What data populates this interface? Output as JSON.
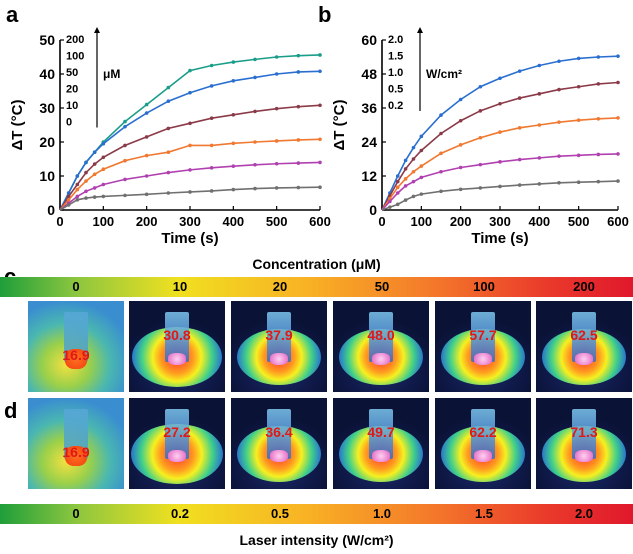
{
  "panels": {
    "a": "a",
    "b": "b",
    "c": "c",
    "d": "d"
  },
  "chart_data": [
    {
      "type": "line",
      "xlabel": "Time (s)",
      "ylabel": "ΔT (°C)",
      "xlim": [
        0,
        600
      ],
      "ylim": [
        0,
        50
      ],
      "xticks": [
        0,
        100,
        200,
        300,
        400,
        500,
        600
      ],
      "yticks": [
        0,
        10,
        20,
        30,
        40,
        50
      ],
      "annotation_unit": "μM",
      "legend_labels": [
        "200",
        "100",
        "50",
        "20",
        "10",
        "0"
      ],
      "x": [
        0,
        20,
        40,
        60,
        80,
        100,
        150,
        200,
        250,
        300,
        350,
        400,
        450,
        500,
        550,
        600
      ],
      "series": [
        {
          "name": "200",
          "color": "#1a9e8a",
          "values": [
            0,
            5,
            10,
            14,
            17,
            20,
            26,
            31,
            36,
            41,
            42.5,
            43.5,
            44.3,
            45,
            45.4,
            45.6
          ]
        },
        {
          "name": "100",
          "color": "#2a6fd0",
          "values": [
            0,
            5,
            10,
            14,
            17,
            19.5,
            24.5,
            28.5,
            32,
            34.5,
            36.5,
            38,
            39,
            40,
            40.6,
            40.8
          ]
        },
        {
          "name": "50",
          "color": "#8b3a48",
          "values": [
            0,
            4,
            7.5,
            11,
            13.5,
            15.5,
            19,
            21.5,
            24,
            25.5,
            27,
            28,
            29,
            29.8,
            30.4,
            30.8
          ]
        },
        {
          "name": "20",
          "color": "#f07830",
          "values": [
            0,
            3,
            6,
            8.5,
            10.5,
            12,
            14.5,
            16,
            17,
            19,
            19,
            19.6,
            20,
            20.3,
            20.6,
            20.8
          ]
        },
        {
          "name": "10",
          "color": "#b040b0",
          "values": [
            0,
            2,
            4,
            5.5,
            6.5,
            7.5,
            9,
            10,
            11,
            11.8,
            12.4,
            12.9,
            13.3,
            13.6,
            13.8,
            14
          ]
        },
        {
          "name": "0",
          "color": "#707070",
          "values": [
            0,
            1.5,
            3,
            3.5,
            3.8,
            4,
            4.3,
            4.6,
            5,
            5.3,
            5.6,
            6,
            6.3,
            6.5,
            6.6,
            6.7
          ]
        }
      ]
    },
    {
      "type": "line",
      "xlabel": "Time (s)",
      "ylabel": "ΔT (°C)",
      "xlim": [
        0,
        600
      ],
      "ylim": [
        0,
        60
      ],
      "xticks": [
        0,
        100,
        200,
        300,
        400,
        500,
        600
      ],
      "yticks": [
        0,
        12,
        24,
        36,
        48,
        60
      ],
      "annotation_unit": "W/cm²",
      "legend_labels": [
        "2.0",
        "1.5",
        "1.0",
        "0.5",
        "0.2"
      ],
      "x": [
        0,
        20,
        40,
        60,
        80,
        100,
        150,
        200,
        250,
        300,
        350,
        400,
        450,
        500,
        550,
        600
      ],
      "series": [
        {
          "name": "2.0",
          "color": "#2a6fd0",
          "values": [
            0,
            6,
            12,
            17.5,
            22,
            26,
            33.5,
            39,
            43.5,
            46.5,
            49,
            51,
            52.5,
            53.5,
            54,
            54.3
          ]
        },
        {
          "name": "1.5",
          "color": "#8b3a48",
          "values": [
            0,
            5,
            10,
            14.5,
            18,
            21,
            27,
            31.5,
            35,
            37.5,
            39.5,
            41,
            42.5,
            43.5,
            44.5,
            45
          ]
        },
        {
          "name": "1.0",
          "color": "#f07830",
          "values": [
            0,
            4,
            8,
            11,
            13.5,
            15.5,
            20,
            23,
            25.5,
            27.5,
            29,
            30,
            31,
            31.7,
            32.2,
            32.5
          ]
        },
        {
          "name": "0.5",
          "color": "#b040b0",
          "values": [
            0,
            3,
            6,
            8.5,
            10,
            11.5,
            13.5,
            15,
            16,
            17,
            17.8,
            18.4,
            19,
            19.3,
            19.6,
            19.8
          ]
        },
        {
          "name": "0.2",
          "color": "#707070",
          "values": [
            0,
            1,
            2,
            3.5,
            4.8,
            5.6,
            6.6,
            7.3,
            7.8,
            8.3,
            8.8,
            9.2,
            9.6,
            9.8,
            10,
            10.2
          ]
        }
      ]
    }
  ],
  "concentration_bar": {
    "title": "Concentration (μM)",
    "labels": [
      "0",
      "10",
      "20",
      "50",
      "100",
      "200"
    ]
  },
  "row_c_temps": [
    "16.9",
    "30.8",
    "37.9",
    "48.0",
    "57.7",
    "62.5"
  ],
  "row_d_temps": [
    "16.9",
    "27.2",
    "36.4",
    "49.7",
    "62.2",
    "71.3"
  ],
  "laser_bar": {
    "title": "Laser intensity (W/cm²)",
    "labels": [
      "0",
      "0.2",
      "0.5",
      "1.0",
      "1.5",
      "2.0"
    ]
  }
}
